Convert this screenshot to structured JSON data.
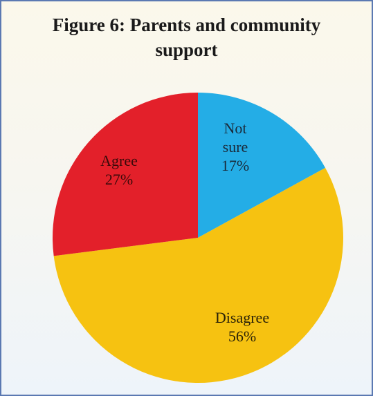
{
  "chart_data": {
    "type": "pie",
    "title_line1": "Figure 6: Parents and community",
    "title_line2": "support",
    "slices": [
      {
        "label_lines": [
          "Not",
          "sure"
        ],
        "value": 17,
        "value_text": "17%",
        "color": "#24ade6",
        "label_color": "#1a2a3a"
      },
      {
        "label_lines": [
          "Disagree"
        ],
        "value": 56,
        "value_text": "56%",
        "color": "#f6c211",
        "label_color": "#2a2208"
      },
      {
        "label_lines": [
          "Agree"
        ],
        "value": 27,
        "value_text": "27%",
        "color": "#e3202a",
        "label_color": "#3a0a0a"
      }
    ]
  }
}
